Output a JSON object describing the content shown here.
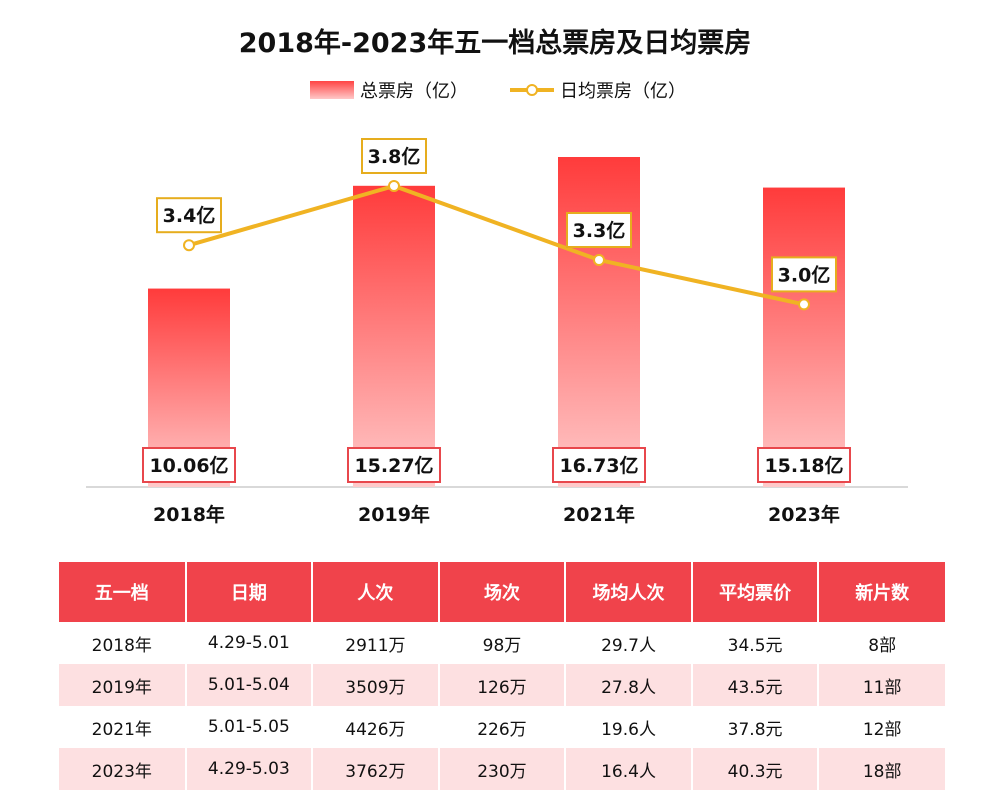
{
  "chart_data": {
    "type": "bar",
    "title": "2018年-2023年五一档总票房及日均票房",
    "categories": [
      "2018年",
      "2019年",
      "2021年",
      "2023年"
    ],
    "series": [
      {
        "name": "总票房（亿）",
        "type": "bar",
        "values": [
          10.06,
          15.27,
          16.73,
          15.18
        ],
        "labels": [
          "10.06亿",
          "15.27亿",
          "16.73亿",
          "15.18亿"
        ]
      },
      {
        "name": "日均票房（亿）",
        "type": "line",
        "values": [
          3.4,
          3.8,
          3.3,
          3.0
        ],
        "labels": [
          "3.4亿",
          "3.8亿",
          "3.3亿",
          "3.0亿"
        ]
      }
    ],
    "legend": "top-center",
    "grid": false,
    "colors": {
      "bar_top": "#ff3b3b",
      "bar_bottom": "#ffc8c8",
      "line": "#f0b323"
    }
  },
  "table": {
    "headers": [
      "五一档",
      "日期",
      "人次",
      "场次",
      "场均人次",
      "平均票价",
      "新片数"
    ],
    "rows": [
      [
        "2018年",
        "4.29-5.01",
        "2911万",
        "98万",
        "29.7人",
        "34.5元",
        "8部"
      ],
      [
        "2019年",
        "5.01-5.04",
        "3509万",
        "126万",
        "27.8人",
        "43.5元",
        "11部"
      ],
      [
        "2021年",
        "5.01-5.05",
        "4426万",
        "226万",
        "19.6人",
        "37.8元",
        "12部"
      ],
      [
        "2023年",
        "4.29-5.03",
        "3762万",
        "230万",
        "16.4人",
        "40.3元",
        "18部"
      ]
    ]
  },
  "colors": {
    "header_bg": "#f0434b",
    "stripe_bg": "#fde0e1"
  }
}
